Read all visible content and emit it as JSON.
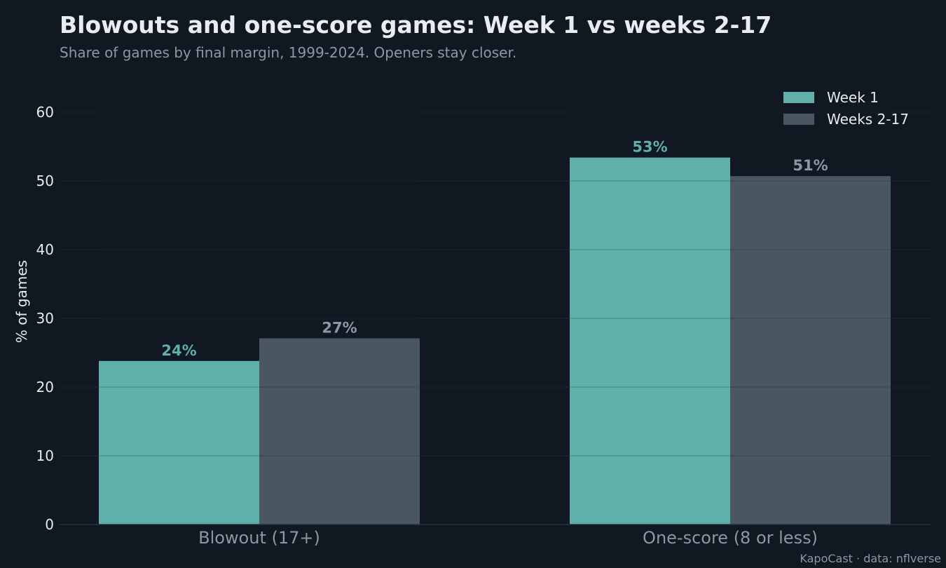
{
  "header": {
    "title": "Blowouts and one-score games: Week 1 vs weeks 2-17",
    "subtitle": "Share of games by final margin, 1999-2024. Openers stay closer."
  },
  "credit": "KapoCast · data: nflverse",
  "colors": {
    "background": "#111821",
    "week1": "#5fb0aa",
    "weeks2_17": "#4a5763",
    "week1_label": "#5fb0aa",
    "weeks2_17_label": "#8c97a3"
  },
  "chart_data": {
    "type": "bar",
    "categories": [
      "Blowout (17+)",
      "One-score (8 or less)"
    ],
    "series": [
      {
        "name": "Week 1",
        "values": [
          23.8,
          53.4
        ],
        "labels": [
          "24%",
          "53%"
        ]
      },
      {
        "name": "Weeks 2-17",
        "values": [
          27.1,
          50.7
        ],
        "labels": [
          "27%",
          "51%"
        ]
      }
    ],
    "xlabel": "",
    "ylabel": "% of games",
    "ylim": [
      0,
      65
    ],
    "yticks": [
      0,
      10,
      20,
      30,
      40,
      50,
      60
    ],
    "grid": true,
    "legend": "top-right"
  }
}
